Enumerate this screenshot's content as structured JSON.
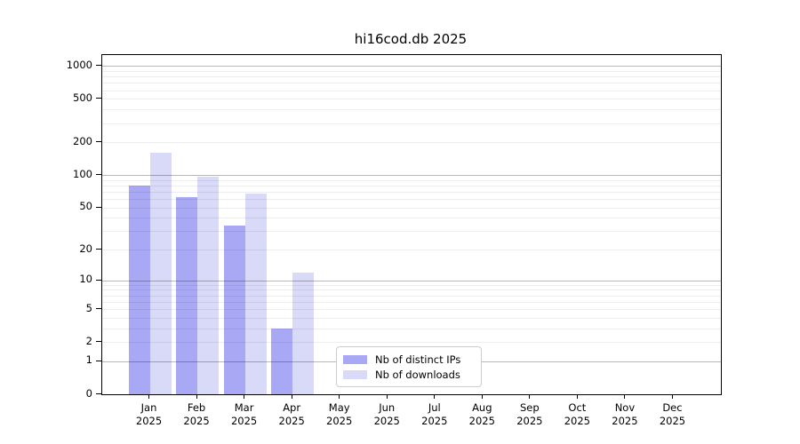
{
  "title": "hi16cod.db 2025",
  "colors": {
    "distinct_ips": "#a8a8f5",
    "downloads": "#d9d9f8",
    "grid_major": "#b5b5b5",
    "grid_minor": "#ececec",
    "spine": "#000000",
    "legend_border": "#cccccc"
  },
  "legend": {
    "items": [
      {
        "label": "Nb of distinct IPs",
        "color": "#a8a8f5"
      },
      {
        "label": "Nb of downloads",
        "color": "#d9d9f8"
      }
    ]
  },
  "chart_data": {
    "type": "bar",
    "title": "hi16cod.db 2025",
    "y_scale": "log10(value+1)",
    "grid": true,
    "legend_position": "lower center",
    "x_year": "2025",
    "categories": [
      "Jan",
      "Feb",
      "Mar",
      "Apr",
      "May",
      "Jun",
      "Jul",
      "Aug",
      "Sep",
      "Oct",
      "Nov",
      "Dec"
    ],
    "series": [
      {
        "name": "Nb of distinct IPs",
        "color": "#a8a8f5",
        "values": [
          80,
          62,
          34,
          3,
          0,
          0,
          0,
          0,
          0,
          0,
          0,
          0
        ]
      },
      {
        "name": "Nb of downloads",
        "color": "#d9d9f8",
        "values": [
          160,
          96,
          67,
          12,
          0,
          0,
          0,
          0,
          0,
          0,
          0,
          0
        ]
      }
    ],
    "y_ticks": [
      0,
      1,
      2,
      5,
      10,
      20,
      50,
      100,
      200,
      500,
      1000
    ],
    "y_major_gridlines": [
      1,
      10,
      100,
      1000
    ],
    "ylim": [
      0,
      1265
    ],
    "xlabel": "",
    "ylabel": ""
  }
}
